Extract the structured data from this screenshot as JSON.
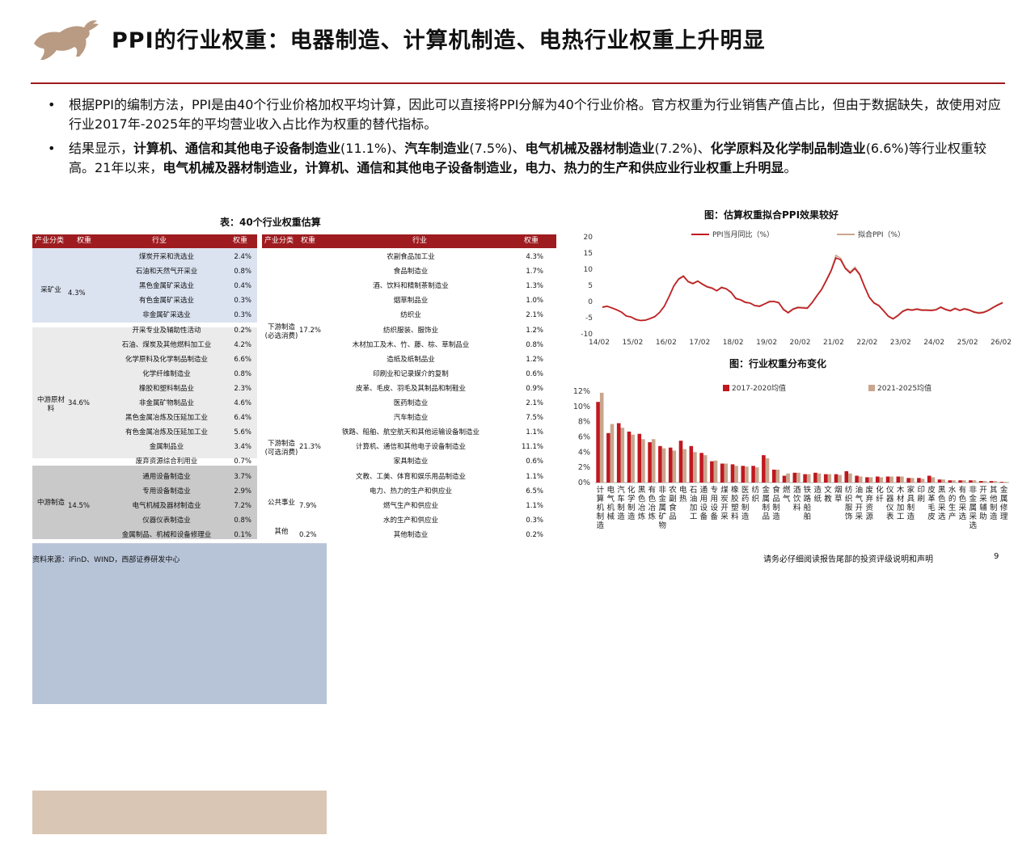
{
  "title": "PPI的行业权重：电器制造、计算机制造、电热行业权重上升明显",
  "bullets": [
    {
      "plain": "根据PPI的编制方法，PPI是由40个行业价格加权平均计算，因此可以直接将PPI分解为40个行业价格。官方权重为行业销售产值占比，但由于数据缺失，故使用对应行业2017年-2025年的平均营业收入占比作为权重的替代指标。"
    },
    {
      "parts": [
        "结果显示，",
        "计算机、通信和其他电子设备制造业",
        "(11.1%)、",
        "汽车制造业",
        "(7.5%)、",
        "电气机械及器材制造业",
        "(7.2%)、",
        "化学原料及化学制品制造业",
        "(6.6%)等行业权重较高。21年以来，",
        "电气机械及器材制造业，计算机、通信和其他电子设备制造业，电力、热力的生产和供应业行业权重上升明显",
        "。"
      ]
    }
  ],
  "table": {
    "title": "表：40个行业权重估算",
    "headers": [
      "产业分类",
      "权重",
      "行业",
      "权重"
    ],
    "left_groups": [
      {
        "name": "采矿业",
        "weight": "4.3%",
        "color": "#dbe3f1",
        "rows": [
          [
            "煤炭开采和洗选业",
            "2.4%"
          ],
          [
            "石油和天然气开采业",
            "0.8%"
          ],
          [
            "黑色金属矿采选业",
            "0.4%"
          ],
          [
            "有色金属矿采选业",
            "0.3%"
          ],
          [
            "非金属矿采选业",
            "0.3%"
          ],
          [
            "开采专业及辅助性活动",
            "0.2%"
          ]
        ]
      },
      {
        "name": "中游原材料",
        "weight": "34.6%",
        "color": "#ebebeb",
        "rows": [
          [
            "石油、煤炭及其他燃料加工业",
            "4.2%"
          ],
          [
            "化学原料及化学制品制造业",
            "6.6%"
          ],
          [
            "化学纤维制造业",
            "0.8%"
          ],
          [
            "橡胶和塑料制品业",
            "2.3%"
          ],
          [
            "非金属矿物制品业",
            "4.6%"
          ],
          [
            "黑色金属冶炼及压延加工业",
            "6.4%"
          ],
          [
            "有色金属冶炼及压延加工业",
            "5.6%"
          ],
          [
            "金属制品业",
            "3.4%"
          ],
          [
            "废弃资源综合利用业",
            "0.7%"
          ]
        ]
      },
      {
        "name": "中游制造",
        "weight": "14.5%",
        "color": "#c9c9c9",
        "rows": [
          [
            "通用设备制造业",
            "3.7%"
          ],
          [
            "专用设备制造业",
            "2.9%"
          ],
          [
            "电气机械及器材制造业",
            "7.2%"
          ],
          [
            "仪器仪表制造业",
            "0.8%"
          ],
          [
            "金属制品、机械和设备修理业",
            "0.1%"
          ]
        ]
      }
    ],
    "right_groups": [
      {
        "name": "下游制造(必选消费)",
        "weight": "17.2%",
        "color": "#b7c4d8",
        "rows": [
          [
            "农副食品加工业",
            "4.3%"
          ],
          [
            "食品制造业",
            "1.7%"
          ],
          [
            "酒、饮料和精制茶制造业",
            "1.3%"
          ],
          [
            "烟草制品业",
            "1.0%"
          ],
          [
            "纺织业",
            "2.1%"
          ],
          [
            "纺织服装、服饰业",
            "1.2%"
          ],
          [
            "木材加工及木、竹、藤、棕、草制品业",
            "0.8%"
          ],
          [
            "造纸及纸制品业",
            "1.2%"
          ],
          [
            "印刷业和记录媒介的复制",
            "0.6%"
          ],
          [
            "皮革、毛皮、羽毛及其制品和制鞋业",
            "0.9%"
          ],
          [
            "医药制造业",
            "2.1%"
          ]
        ]
      },
      {
        "name": "下游制造(可选消费)",
        "weight": "21.3%",
        "color": "#ffffff",
        "rows": [
          [
            "汽车制造业",
            "7.5%"
          ],
          [
            "铁路、船舶、航空航天和其他运输设备制造业",
            "1.1%"
          ],
          [
            "计算机、通信和其他电子设备制造业",
            "11.1%"
          ],
          [
            "家具制造业",
            "0.6%"
          ],
          [
            "文教、工美、体育和娱乐用品制造业",
            "1.1%"
          ]
        ]
      },
      {
        "name": "公共事业",
        "weight": "7.9%",
        "color": "#d9c6b4",
        "rows": [
          [
            "电力、热力的生产和供应业",
            "6.5%"
          ],
          [
            "燃气生产和供应业",
            "1.1%"
          ],
          [
            "水的生产和供应业",
            "0.3%"
          ]
        ]
      },
      {
        "name": "其他",
        "weight": "0.2%",
        "color": "#ffffff",
        "rows": [
          [
            "其他制造业",
            "0.2%"
          ]
        ]
      }
    ]
  },
  "chart_data": [
    {
      "type": "line",
      "title": "图：估算权重拟合PPI效果较好",
      "x_ticks": [
        "14/02",
        "15/02",
        "16/02",
        "17/02",
        "18/02",
        "19/02",
        "20/02",
        "21/02",
        "22/02",
        "23/02",
        "24/02",
        "25/02",
        "26/02"
      ],
      "ylim": [
        -10,
        20
      ],
      "y_ticks": [
        20,
        15,
        10,
        5,
        0,
        -5,
        -10
      ],
      "series": [
        {
          "name": "PPI当月同比（%）",
          "color": "#c0181f",
          "values": [
            -1.8,
            -1.5,
            -2.0,
            -2.6,
            -3.3,
            -4.5,
            -4.8,
            -5.6,
            -5.9,
            -5.8,
            -5.3,
            -4.7,
            -3.4,
            -1.5,
            1.5,
            4.8,
            6.9,
            7.8,
            6.1,
            5.5,
            6.3,
            5.3,
            4.5,
            4.1,
            3.3,
            4.3,
            3.9,
            2.8,
            0.9,
            0.5,
            -0.3,
            -0.5,
            -1.3,
            -1.5,
            -0.8,
            -0.1,
            0.0,
            -0.4,
            -2.5,
            -3.5,
            -2.4,
            -1.9,
            -2.0,
            -2.1,
            -0.4,
            1.7,
            3.7,
            6.5,
            9.5,
            13.5,
            12.9,
            10.2,
            8.8,
            10.2,
            8.3,
            4.6,
            1.3,
            -0.5,
            -1.3,
            -2.9,
            -4.6,
            -5.4,
            -4.4,
            -3.1,
            -2.5,
            -2.7,
            -2.4,
            -2.7,
            -2.7,
            -2.8,
            -2.6,
            -1.8,
            -2.5,
            -2.9,
            -2.2,
            -2.8,
            -2.3,
            -2.7,
            -3.3,
            -3.6,
            -3.4,
            -2.8,
            -1.9,
            -1.1,
            -0.4
          ]
        },
        {
          "name": "拟合PPI（%）",
          "color": "#c9a68e",
          "values": [
            -1.6,
            -1.4,
            -1.9,
            -2.5,
            -3.2,
            -4.4,
            -4.7,
            -5.4,
            -5.8,
            -5.7,
            -5.2,
            -4.6,
            -3.3,
            -1.3,
            1.7,
            5.0,
            7.1,
            8.0,
            6.3,
            5.7,
            6.4,
            5.5,
            4.7,
            4.3,
            3.4,
            4.5,
            4.0,
            3.0,
            1.1,
            0.6,
            -0.1,
            -0.4,
            -1.2,
            -1.3,
            -0.7,
            0.1,
            0.1,
            -0.2,
            -2.3,
            -3.3,
            -2.2,
            -1.7,
            -1.8,
            -1.9,
            -0.2,
            1.9,
            3.9,
            6.8,
            9.8,
            14.3,
            13.4,
            10.5,
            9.2,
            10.6,
            8.6,
            4.9,
            1.5,
            -0.3,
            -1.1,
            -2.7,
            -4.4,
            -5.2,
            -4.2,
            -2.9,
            -2.3,
            -2.5,
            -2.2,
            -2.5,
            -2.5,
            -2.6,
            -2.4,
            -1.6,
            -2.3,
            -2.7,
            -2.0,
            -2.6,
            -2.1,
            -2.5,
            -3.1,
            -3.4,
            -3.2,
            -2.6,
            -1.7,
            -0.9,
            -0.2
          ]
        }
      ]
    },
    {
      "type": "bar",
      "title": "图：行业权重分布变化",
      "ylim": [
        0,
        12
      ],
      "y_ticks": [
        "12%",
        "10%",
        "8%",
        "6%",
        "4%",
        "2%",
        "0%"
      ],
      "categories": [
        "计算机制造",
        "电气机械",
        "汽车制造",
        "化学制造",
        "黑色冶炼",
        "有色冶炼",
        "非金属矿物",
        "农副食品",
        "电热",
        "石油加工",
        "通用设备",
        "专用设备",
        "煤炭开采",
        "橡胶塑料",
        "医药制造",
        "纺织",
        "金属制品",
        "食品制造",
        "燃气",
        "酒饮料",
        "铁路船舶",
        "造纸",
        "文教",
        "烟草",
        "纺织服饰",
        "油气开采",
        "废弃资源",
        "化纤",
        "仪器仪表",
        "木材加工",
        "家具制造",
        "印刷",
        "皮革毛皮",
        "黑色采选",
        "水的生产",
        "有色采选",
        "非金属采选",
        "开采辅助",
        "其他制造",
        "金属修理"
      ],
      "labels": [
        "计算机制造",
        "电气机械",
        "汽车制造",
        "化学制造",
        "黑色冶炼",
        "有色冶炼",
        "非金属矿物",
        "农副食品",
        "电热",
        "石油加工",
        "通用设备",
        "专用设备",
        "煤炭开采",
        "橡胶塑料",
        "医药制造",
        "纺织",
        "金属制品",
        "食品制造",
        "燃气",
        "酒饮料",
        "铁路船舶",
        "造纸",
        "文教",
        "烟草",
        "纺织服饰",
        "油气开采",
        "废弃资源",
        "化纤",
        "仪器仪表",
        "木材加工",
        "家具制造",
        "印刷",
        "皮革毛皮",
        "黑色采选",
        "水的生产",
        "有色采选",
        "非金属采选",
        "开采辅助",
        "其他制造",
        "金属修理"
      ],
      "series": [
        {
          "name": "2017-2020均值",
          "color": "#c0181f",
          "values": [
            10.6,
            6.5,
            7.8,
            6.7,
            6.4,
            5.3,
            4.8,
            4.6,
            5.5,
            4.8,
            3.9,
            2.8,
            2.5,
            2.4,
            2.2,
            2.2,
            3.6,
            1.7,
            0.9,
            1.3,
            1.1,
            1.3,
            1.1,
            1.1,
            1.5,
            0.9,
            0.7,
            0.8,
            0.8,
            0.8,
            0.6,
            0.6,
            0.9,
            0.4,
            0.3,
            0.3,
            0.3,
            0.2,
            0.2,
            0.1
          ]
        },
        {
          "name": "2021-2025均值",
          "color": "#c9a68e",
          "values": [
            11.8,
            7.7,
            7.2,
            6.3,
            5.7,
            5.7,
            4.5,
            4.2,
            4.4,
            4.0,
            3.6,
            2.9,
            2.5,
            2.2,
            2.1,
            2.0,
            3.2,
            1.7,
            1.2,
            1.3,
            1.1,
            1.2,
            1.1,
            1.0,
            1.2,
            0.8,
            0.7,
            0.7,
            0.8,
            0.8,
            0.6,
            0.5,
            0.7,
            0.4,
            0.3,
            0.3,
            0.3,
            0.2,
            0.2,
            0.1
          ]
        }
      ]
    }
  ],
  "footer": {
    "source": "资料来源：iFinD、WIND，西部证券研发中心",
    "disclaimer": "请务必仔细阅读报告尾部的投资评级说明和声明",
    "page": "9"
  }
}
